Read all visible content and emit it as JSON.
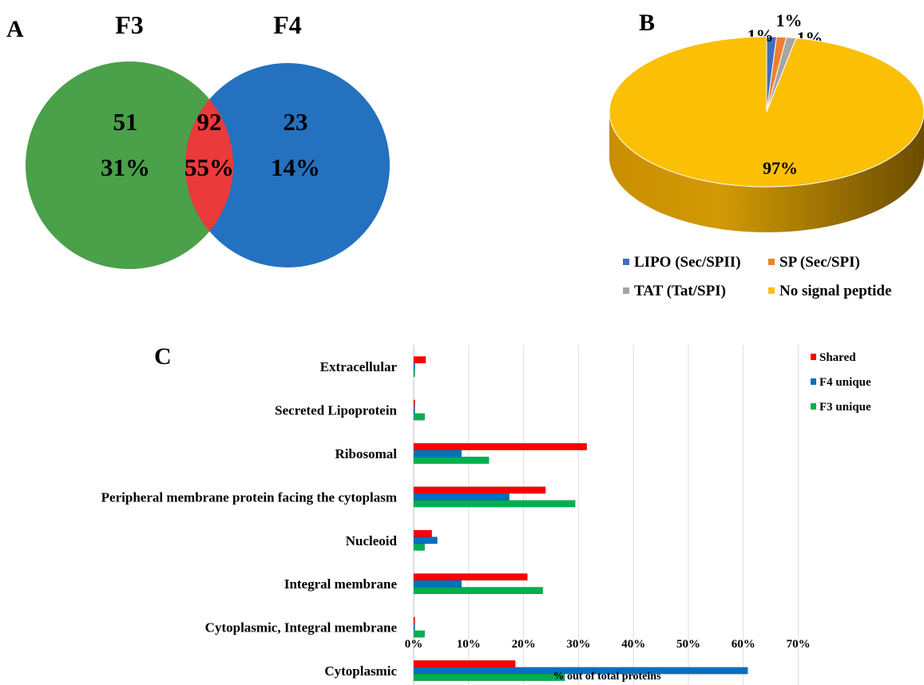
{
  "panels": {
    "a": "A",
    "b": "B",
    "c": "C"
  },
  "chart_data": [
    {
      "type": "venn",
      "sets": [
        {
          "name": "F3",
          "color": "#4ba04a"
        },
        {
          "name": "F4",
          "color": "#2471bf"
        }
      ],
      "intersection_color": "#eb3a3a",
      "regions": [
        {
          "region": "F3 only",
          "count": "51",
          "percent": "31%"
        },
        {
          "region": "F3 and F4",
          "count": "92",
          "percent": "55%"
        },
        {
          "region": "F4 only",
          "count": "23",
          "percent": "14%"
        }
      ]
    },
    {
      "type": "pie",
      "slices": [
        {
          "name": "LIPO (Sec/SPII)",
          "value": 1,
          "label": "1%",
          "color": "#3b6fc0"
        },
        {
          "name": "SP (Sec/SPI)",
          "value": 1,
          "label": "1%",
          "color": "#ee7f32"
        },
        {
          "name": "TAT (Tat/SPI)",
          "value": 1,
          "label": "1%",
          "color": "#a5a5a5"
        },
        {
          "name": "No signal peptide",
          "value": 97,
          "label": "97%",
          "color": "#fbbf05"
        }
      ],
      "legend_placement": "bottom"
    },
    {
      "type": "bar",
      "orientation": "horizontal",
      "categories": [
        "Extracellular",
        "Secreted Lipoprotein",
        "Ribosomal",
        "Peripheral membrane protein facing the cytoplasm",
        "Nucleoid",
        "Integral membrane",
        "Cytoplasmic, Integral membrane",
        "Cytoplasmic"
      ],
      "series": [
        {
          "name": "Shared",
          "color": "#ff0000",
          "values": [
            2.2,
            0.2,
            31.5,
            24,
            3.3,
            20.7,
            0.2,
            18.5
          ]
        },
        {
          "name": "F4 unique",
          "color": "#0070c0",
          "values": [
            0.2,
            0.2,
            8.7,
            17.4,
            4.3,
            8.7,
            0.2,
            60.8
          ]
        },
        {
          "name": "F3 unique",
          "color": "#00b050",
          "values": [
            0.2,
            2.0,
            13.7,
            29.4,
            2.0,
            23.5,
            2.0,
            27.5
          ]
        }
      ],
      "xticks": [
        "0%",
        "10%",
        "20%",
        "30%",
        "40%",
        "50%",
        "60%",
        "70%"
      ],
      "xlim": [
        0,
        70
      ],
      "xlabel": "% out of total  proteins",
      "grid": true,
      "legend_placement": "top-right"
    }
  ]
}
